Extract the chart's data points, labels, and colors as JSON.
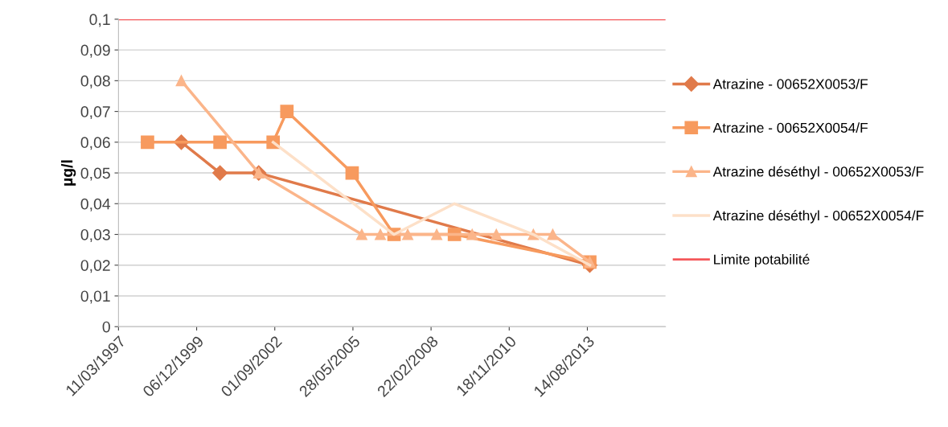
{
  "chart_data": {
    "type": "line",
    "ylabel": "µg/l",
    "xlim": [
      "1997-03-11",
      "2016-05-10"
    ],
    "xticks": [
      {
        "value": "1997-03-11",
        "label": "11/03/1997"
      },
      {
        "value": "1999-12-06",
        "label": "06/12/1999"
      },
      {
        "value": "2002-09-01",
        "label": "01/09/2002"
      },
      {
        "value": "2005-05-28",
        "label": "28/05/2005"
      },
      {
        "value": "2008-02-22",
        "label": "22/02/2008"
      },
      {
        "value": "2010-11-18",
        "label": "18/11/2010"
      },
      {
        "value": "2013-08-14",
        "label": "14/08/2013"
      }
    ],
    "ylim": [
      0,
      0.1
    ],
    "yticks": [
      {
        "value": 0,
        "label": "0"
      },
      {
        "value": 0.01,
        "label": "0,01"
      },
      {
        "value": 0.02,
        "label": "0,02"
      },
      {
        "value": 0.03,
        "label": "0,03"
      },
      {
        "value": 0.04,
        "label": "0,04"
      },
      {
        "value": 0.05,
        "label": "0,05"
      },
      {
        "value": 0.06,
        "label": "0,06"
      },
      {
        "value": 0.07,
        "label": "0,07"
      },
      {
        "value": 0.08,
        "label": "0,08"
      },
      {
        "value": 0.09,
        "label": "0,09"
      },
      {
        "value": 0.1,
        "label": "0,1"
      }
    ],
    "grid": "y",
    "legend": "right",
    "series": [
      {
        "name": "Atrazine - 00652X0053/F",
        "color": "#e07a4a",
        "marker": "diamond",
        "x": [
          "1999-05-24",
          "2000-09-30",
          "2002-02-07",
          "2013-09-14"
        ],
        "values": [
          0.06,
          0.05,
          0.05,
          0.02
        ]
      },
      {
        "name": "Atrazine - 00652X0054/F",
        "color": "#f79a5e",
        "marker": "square",
        "x": [
          "1998-03-17",
          "2000-09-30",
          "2002-08-11",
          "2003-02-03",
          "2005-05-18",
          "2006-11-05",
          "2008-12-17",
          "2013-09-14"
        ],
        "values": [
          0.06,
          0.06,
          0.06,
          0.07,
          0.05,
          0.03,
          0.03,
          0.021
        ]
      },
      {
        "name": "Atrazine déséthyl - 00652X0053/F",
        "color": "#fbb58a",
        "marker": "triangle",
        "x": [
          "1999-05-24",
          "2002-02-07",
          "2005-09-18",
          "2006-05-14",
          "2007-04-29",
          "2008-05-04",
          "2009-08-01",
          "2010-06-06",
          "2011-09-23",
          "2012-05-28",
          "2013-09-14"
        ],
        "values": [
          0.08,
          0.05,
          0.03,
          0.03,
          0.03,
          0.03,
          0.03,
          0.03,
          0.03,
          0.03,
          0.021
        ]
      },
      {
        "name": "Atrazine déséthyl - 00652X0054/F",
        "color": "#fde0c8",
        "marker": "none",
        "x": [
          "2002-08-11",
          "2006-11-05",
          "2008-12-17",
          "2011-09-23",
          "2013-09-14"
        ],
        "values": [
          0.06,
          0.03,
          0.04,
          0.03,
          0.02
        ]
      }
    ],
    "ref_lines": [
      {
        "axis": "y",
        "value": 0.1,
        "label": "Limite potabilité",
        "color": "#f4575a"
      }
    ]
  }
}
